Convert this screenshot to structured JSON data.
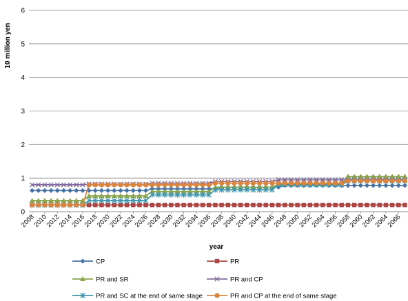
{
  "chart_data": {
    "type": "line",
    "title": "",
    "xlabel": "year",
    "ylabel": "10 million yen",
    "ylim": [
      0,
      6
    ],
    "yticks": [
      0,
      1,
      2,
      3,
      4,
      5,
      6
    ],
    "x_start": 2008,
    "x_end": 2067,
    "x_tick_labels": [
      "2008",
      "2010",
      "2012",
      "2014",
      "2016",
      "2018",
      "2020",
      "2022",
      "2024",
      "2026",
      "2028",
      "2030",
      "2032",
      "2034",
      "2036",
      "2038",
      "2040",
      "2042",
      "2044",
      "2046",
      "2048",
      "2050",
      "2052",
      "2054",
      "2056",
      "2058",
      "2060",
      "2062",
      "2064",
      "2066"
    ],
    "grid": "horizontal",
    "legend_position": "bottom",
    "series": [
      {
        "name": "CP",
        "color": "#4572A7",
        "marker": "diamond",
        "segments": [
          {
            "from": 2008,
            "to": 2026,
            "value": 0.63
          },
          {
            "from": 2027,
            "to": 2037,
            "value": 0.68
          },
          {
            "from": 2038,
            "to": 2047,
            "value": 0.73
          },
          {
            "from": 2048,
            "to": 2067,
            "value": 0.78
          }
        ]
      },
      {
        "name": "PR",
        "color": "#AA4643",
        "marker": "square",
        "segments": [
          {
            "from": 2008,
            "to": 2067,
            "value": 0.2
          }
        ]
      },
      {
        "name": "PR and SR",
        "color": "#89A54E",
        "marker": "triangle",
        "segments": [
          {
            "from": 2008,
            "to": 2016,
            "value": 0.33
          },
          {
            "from": 2017,
            "to": 2026,
            "value": 0.47
          },
          {
            "from": 2027,
            "to": 2036,
            "value": 0.6
          },
          {
            "from": 2037,
            "to": 2046,
            "value": 0.73
          },
          {
            "from": 2047,
            "to": 2057,
            "value": 0.83
          },
          {
            "from": 2058,
            "to": 2067,
            "value": 1.05
          }
        ]
      },
      {
        "name": "PR and CP",
        "color": "#80699B",
        "marker": "x",
        "segments": [
          {
            "from": 2008,
            "to": 2016,
            "value": 0.8
          },
          {
            "from": 2017,
            "to": 2026,
            "value": 0.82
          },
          {
            "from": 2027,
            "to": 2036,
            "value": 0.85
          },
          {
            "from": 2037,
            "to": 2046,
            "value": 0.9
          },
          {
            "from": 2047,
            "to": 2067,
            "value": 0.95
          }
        ]
      },
      {
        "name": "PR and SC at the end of same stage",
        "color": "#3D96AE",
        "marker": "asterisk",
        "segments": [
          {
            "from": 2008,
            "to": 2016,
            "value": 0.2
          },
          {
            "from": 2017,
            "to": 2026,
            "value": 0.33
          },
          {
            "from": 2027,
            "to": 2036,
            "value": 0.5
          },
          {
            "from": 2037,
            "to": 2046,
            "value": 0.65
          },
          {
            "from": 2047,
            "to": 2057,
            "value": 0.8
          },
          {
            "from": 2058,
            "to": 2067,
            "value": 0.92
          }
        ]
      },
      {
        "name": "PR and CP at the end of same stage",
        "color": "#DB843D",
        "marker": "circle",
        "segments": [
          {
            "from": 2008,
            "to": 2016,
            "value": 0.2
          },
          {
            "from": 2017,
            "to": 2026,
            "value": 0.8
          },
          {
            "from": 2027,
            "to": 2036,
            "value": 0.8
          },
          {
            "from": 2037,
            "to": 2046,
            "value": 0.85
          },
          {
            "from": 2047,
            "to": 2057,
            "value": 0.85
          },
          {
            "from": 2058,
            "to": 2067,
            "value": 0.92
          }
        ]
      }
    ]
  }
}
